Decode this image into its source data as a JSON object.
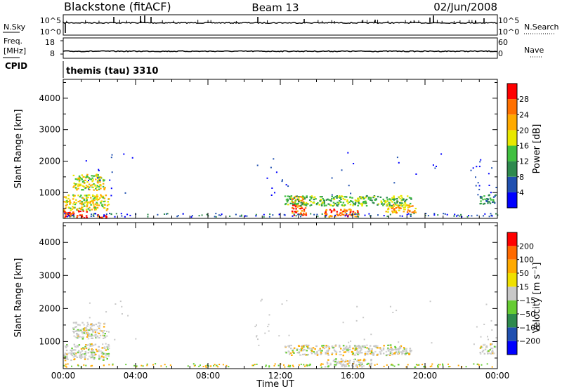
{
  "header": {
    "station": "Blackstone (fitACF)",
    "beam": "Beam 13",
    "date": "02/Jun/2008"
  },
  "noise_panel": {
    "left_label": "N.Sky",
    "left_ticks": [
      "10^5",
      "10^0"
    ],
    "right_label": "N.Search",
    "right_ticks": [
      "10^5",
      "10^0"
    ]
  },
  "freq_panel": {
    "left_label_1": "Freq.",
    "left_label_2": "[MHz]",
    "left_ticks": [
      "18",
      "8"
    ],
    "right_label": "Nave",
    "right_ticks": [
      "60",
      "0"
    ]
  },
  "cpid_panel": {
    "label": "CPID",
    "text": "themis (tau) 3310"
  },
  "colors": {
    "background": "#ffffff",
    "axis": "#000000",
    "scatter_gray": "#c8c8c8",
    "power_scale": [
      "#0000ff",
      "#2050b0",
      "#2e8a4e",
      "#40c040",
      "#e8e800",
      "#ffaa00",
      "#ff7000",
      "#ff0000"
    ],
    "velocity_scale": [
      "#ff0000",
      "#ff6a00",
      "#ffaa00",
      "#f0e000",
      "#c8c8c8",
      "#66cc33",
      "#2e8a4e",
      "#2050b0",
      "#0000ff"
    ]
  },
  "chart_data": [
    {
      "type": "heatmap",
      "name": "power",
      "xlabel": "",
      "ylabel": "Slant Range [km]",
      "xlim_hours": [
        0,
        24
      ],
      "ylim": [
        180,
        4600
      ],
      "y_ticks": [
        "1000",
        "2000",
        "3000",
        "4000"
      ],
      "colorbar_label": "Power [dB]",
      "colorbar_ticks": [
        "4",
        "8",
        "12",
        "16",
        "20",
        "24",
        "28"
      ],
      "regions": [
        {
          "t0": 0.0,
          "t1": 1.3,
          "r0": 200,
          "r1": 450,
          "level": 7
        },
        {
          "t0": 0.0,
          "t1": 2.5,
          "r0": 450,
          "r1": 950,
          "level": 4
        },
        {
          "t0": 0.5,
          "t1": 2.3,
          "r0": 1100,
          "r1": 1600,
          "level": 4
        },
        {
          "t0": 1.8,
          "t1": 2.4,
          "r0": 200,
          "r1": 320,
          "level": 6
        },
        {
          "t0": 12.6,
          "t1": 13.4,
          "r0": 300,
          "r1": 900,
          "level": 6
        },
        {
          "t0": 12.2,
          "t1": 19.2,
          "r0": 600,
          "r1": 920,
          "level": 3
        },
        {
          "t0": 14.4,
          "t1": 16.3,
          "r0": 250,
          "r1": 500,
          "level": 6
        },
        {
          "t0": 17.8,
          "t1": 19.5,
          "r0": 380,
          "r1": 650,
          "level": 5
        },
        {
          "t0": 23.0,
          "t1": 23.9,
          "r0": 650,
          "r1": 950,
          "level": 2
        }
      ]
    },
    {
      "type": "heatmap",
      "name": "velocity",
      "xlabel": "Time UT",
      "ylabel": "Slant Range [km]",
      "xlim_hours": [
        0,
        24
      ],
      "ylim": [
        180,
        4600
      ],
      "x_ticks": [
        "00:00",
        "04:00",
        "08:00",
        "12:00",
        "16:00",
        "20:00",
        "00:00"
      ],
      "y_ticks": [
        "1000",
        "2000",
        "3000",
        "4000"
      ],
      "colorbar_label": "Velocity [m s⁻¹]",
      "colorbar_ticks": [
        "200",
        "100",
        "50",
        "15",
        "−15",
        "−50",
        "−100",
        "−200"
      ],
      "regions": [
        {
          "t0": 0.0,
          "t1": 2.5,
          "r0": 450,
          "r1": 950,
          "level": 4
        },
        {
          "t0": 0.5,
          "t1": 2.3,
          "r0": 1100,
          "r1": 1600,
          "level": 4
        },
        {
          "t0": 12.2,
          "t1": 19.2,
          "r0": 600,
          "r1": 920,
          "level": 4
        },
        {
          "t0": 14.4,
          "t1": 17.0,
          "r0": 250,
          "r1": 500,
          "level": 4
        },
        {
          "t0": 23.0,
          "t1": 23.9,
          "r0": 650,
          "r1": 950,
          "level": 4
        }
      ]
    }
  ]
}
